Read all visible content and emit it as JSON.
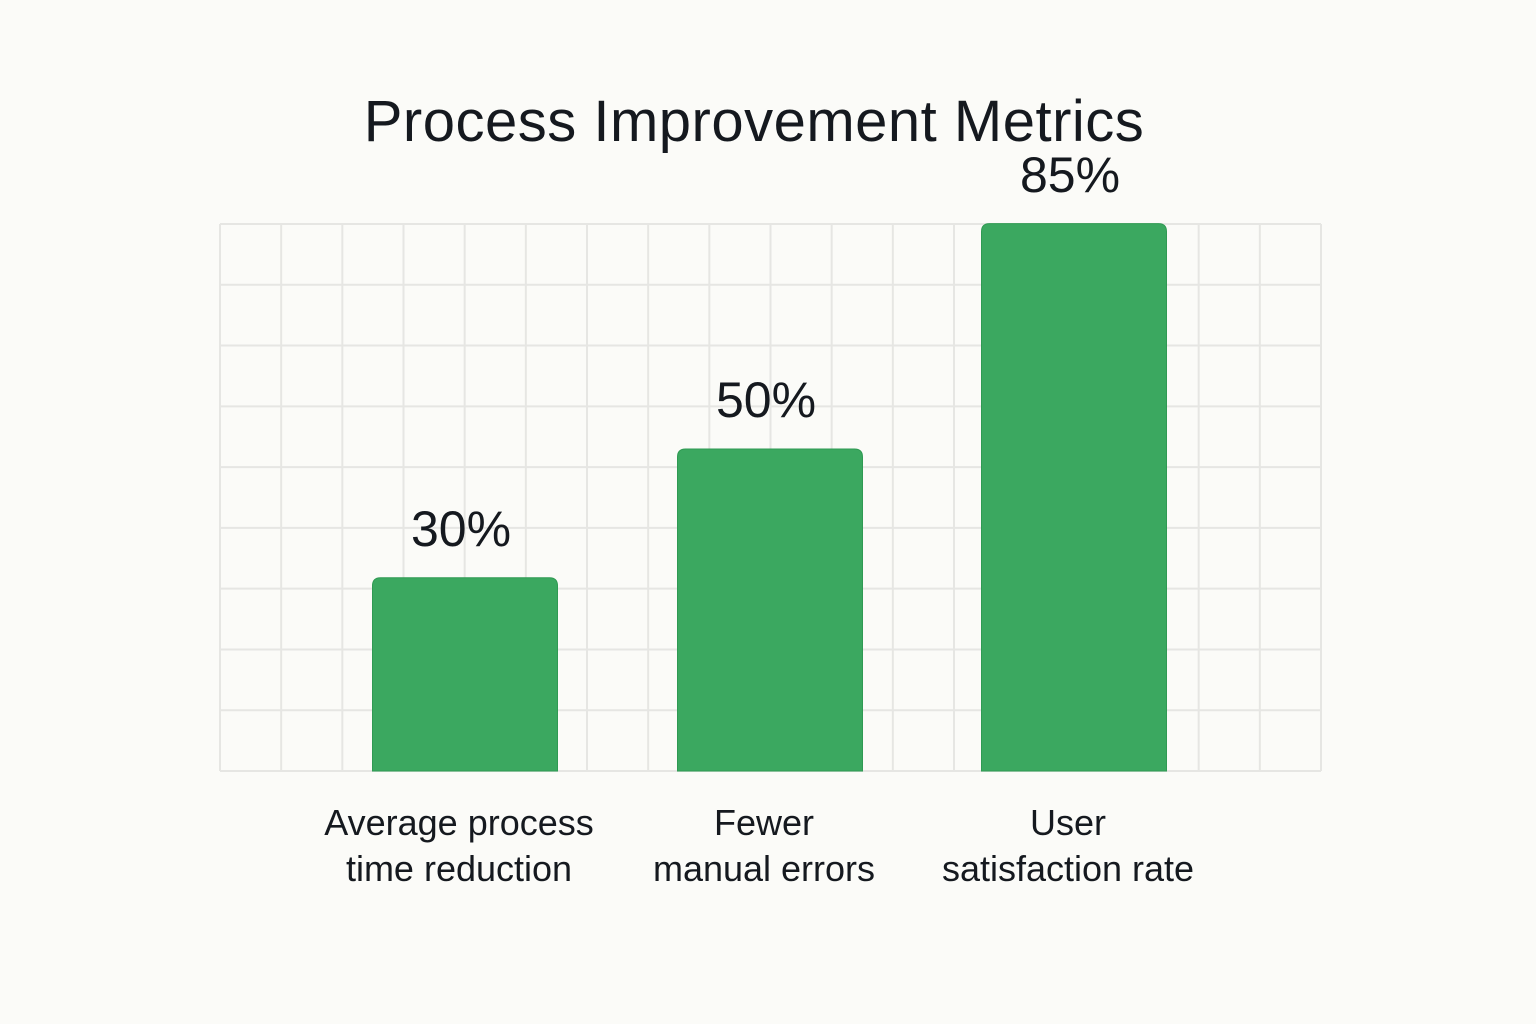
{
  "colors": {
    "bar": "#3ba860",
    "grid": "#e6e6e3",
    "text": "#15191f",
    "background": "#fbfbf8"
  },
  "chart_data": {
    "type": "bar",
    "title": "Process Improvement Metrics",
    "categories": [
      "Average process\ntime reduction",
      "Fewer\nmanual errors",
      "User\nsatisfaction rate"
    ],
    "values": [
      30,
      50,
      85
    ],
    "data_labels": [
      "30%",
      "50%",
      "85%"
    ],
    "ylim": [
      0,
      100
    ],
    "unit": "%",
    "grid": true,
    "legend": "none",
    "xlabel": "",
    "ylabel": ""
  }
}
